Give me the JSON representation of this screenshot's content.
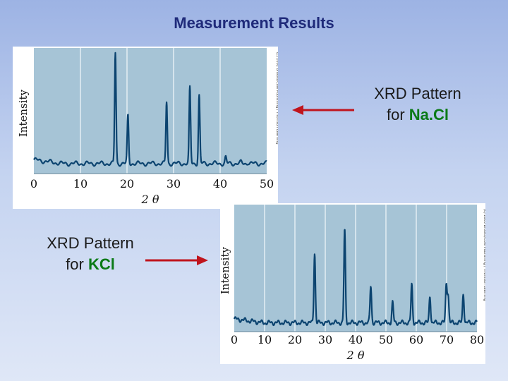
{
  "slide": {
    "title": "Measurement Results",
    "captions": [
      {
        "prefix": "XRD Pattern",
        "word": "for ",
        "compound": "Na.Cl"
      },
      {
        "prefix": "XRD Pattern",
        "word": "for ",
        "compound": "KCl"
      }
    ],
    "colors": {
      "title": "#1f2a7a",
      "arrow": "#c0141d",
      "compound": "#0b7a17",
      "plot_bg": "#a6c4d6",
      "trace": "#0c4470"
    }
  },
  "chart_data": [
    {
      "type": "line",
      "ylabel": "Intensity",
      "xlabel": "2 θ",
      "xlim": [
        0,
        50
      ],
      "xticks": [
        0,
        10,
        20,
        30,
        40,
        50
      ],
      "grid": true,
      "baseline": 0.08,
      "peaks": [
        {
          "x": 17.5,
          "y": 0.96
        },
        {
          "x": 20.2,
          "y": 0.46
        },
        {
          "x": 28.5,
          "y": 0.57
        },
        {
          "x": 33.5,
          "y": 0.68
        },
        {
          "x": 35.5,
          "y": 0.62
        },
        {
          "x": 41.2,
          "y": 0.13
        },
        {
          "x": 44.5,
          "y": 0.09
        },
        {
          "x": 46.0,
          "y": 0.09
        }
      ],
      "side_text": "(c) 2002 Brooks/Cole Publishing / Thomson Learning"
    },
    {
      "type": "line",
      "ylabel": "Intensity",
      "xlabel": "2 θ",
      "xlim": [
        0,
        80
      ],
      "xticks": [
        0,
        10,
        20,
        30,
        40,
        50,
        60,
        70,
        80
      ],
      "grid": true,
      "baseline": 0.07,
      "peaks": [
        {
          "x": 26.5,
          "y": 0.62
        },
        {
          "x": 36.4,
          "y": 0.8
        },
        {
          "x": 45.0,
          "y": 0.36
        },
        {
          "x": 52.2,
          "y": 0.23
        },
        {
          "x": 58.5,
          "y": 0.37
        },
        {
          "x": 64.5,
          "y": 0.28
        },
        {
          "x": 69.9,
          "y": 0.37
        },
        {
          "x": 70.5,
          "y": 0.29
        },
        {
          "x": 75.5,
          "y": 0.3
        }
      ],
      "side_text": "(c) 2003 Brooks/Cole Publishing / Thomson Learning"
    }
  ]
}
